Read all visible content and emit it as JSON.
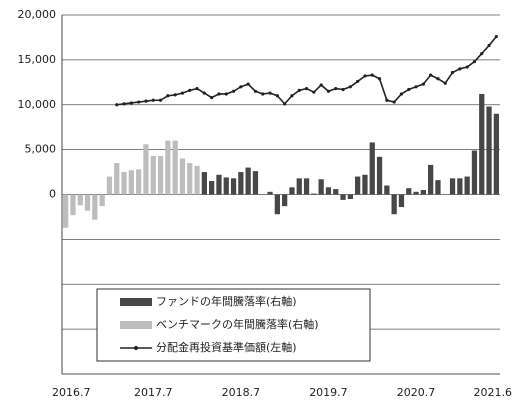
{
  "chart_data": {
    "type": "bar",
    "categories": [
      "2016.7",
      null,
      null,
      null,
      null,
      null,
      null,
      null,
      null,
      null,
      null,
      null,
      "2017.7",
      null,
      null,
      null,
      null,
      null,
      null,
      null,
      null,
      null,
      null,
      null,
      "2018.7",
      null,
      null,
      null,
      null,
      null,
      null,
      null,
      null,
      null,
      null,
      null,
      "2019.7",
      null,
      null,
      null,
      null,
      null,
      null,
      null,
      null,
      null,
      null,
      null,
      "2020.7",
      null,
      null,
      null,
      null,
      null,
      null,
      null,
      null,
      null,
      null,
      "2021.6"
    ],
    "ylim": [
      -20000,
      20000
    ],
    "yticks": [
      {
        "value": -20000,
        "label": null
      },
      {
        "value": -15000,
        "label": null
      },
      {
        "value": -10000,
        "label": null
      },
      {
        "value": -5000,
        "label": null
      },
      0,
      {
        "value": 5000,
        "label": "5,000"
      },
      {
        "value": 10000,
        "label": "10,000"
      },
      {
        "value": 15000,
        "label": "15,000"
      },
      {
        "value": 20000,
        "label": "20,000"
      }
    ],
    "grid": true,
    "series": [
      {
        "name": "ファンドの年間騰落率(右軸)",
        "type": "bar",
        "color": "#474747",
        "values": [
          null,
          null,
          null,
          null,
          null,
          null,
          null,
          null,
          null,
          null,
          null,
          null,
          null,
          null,
          null,
          null,
          null,
          null,
          null,
          2500,
          1500,
          2200,
          1900,
          1800,
          2500,
          3000,
          2600,
          null,
          300,
          -2200,
          -1300,
          800,
          1800,
          1800,
          100,
          1700,
          800,
          600,
          -600,
          -500,
          2000,
          2200,
          5800,
          4200,
          1000,
          -2200,
          -1400,
          700,
          300,
          500,
          3300,
          1600,
          null,
          1800,
          1800,
          2000,
          4900,
          11200,
          9800,
          9000
        ]
      },
      {
        "name": "ベンチマークの年間騰落率(右軸)",
        "type": "bar",
        "color": "#bdbdbd",
        "values": [
          -3700,
          -2300,
          -1200,
          -1800,
          -2800,
          -1300,
          2000,
          3500,
          2500,
          2700,
          2800,
          5600,
          4300,
          4300,
          6000,
          6000,
          4000,
          3500,
          3200,
          null,
          null,
          null,
          null,
          null,
          null,
          null,
          null,
          null,
          null,
          null,
          null,
          null,
          null,
          null,
          null,
          null,
          null,
          null,
          null,
          null,
          null,
          null,
          null,
          null,
          null,
          null,
          null,
          null,
          null,
          null,
          null,
          null,
          null,
          null,
          null,
          null,
          null,
          null,
          null,
          null
        ]
      },
      {
        "name": "分配金再投資基準価額(左軸)",
        "type": "line",
        "color": "#222222",
        "values": [
          null,
          null,
          null,
          null,
          null,
          null,
          null,
          10000,
          10100,
          10200,
          10300,
          10400,
          10500,
          10500,
          11000,
          11100,
          11300,
          11600,
          11800,
          11300,
          10800,
          11200,
          11200,
          11500,
          12000,
          12300,
          11500,
          11200,
          11300,
          11000,
          10100,
          11000,
          11600,
          11800,
          11400,
          12200,
          11500,
          11800,
          11700,
          12000,
          12600,
          13200,
          13300,
          12900,
          10500,
          10300,
          11200,
          11700,
          12000,
          12300,
          13300,
          12900,
          12400,
          13600,
          14000,
          14200,
          14800,
          15700,
          16600,
          17600
        ]
      }
    ]
  }
}
